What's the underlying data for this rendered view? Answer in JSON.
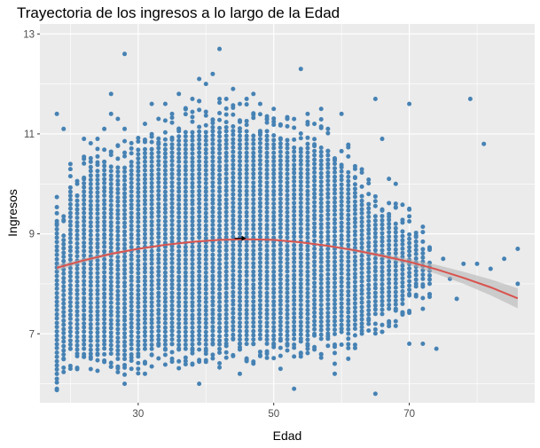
{
  "chart_data": {
    "type": "scatter",
    "title": "Trayectoria de los ingresos a lo largo de la Edad",
    "xlabel": "Edad",
    "ylabel": "Ingresos",
    "xlim": [
      15.5,
      88.5
    ],
    "ylim": [
      5.62,
      13.2
    ],
    "xticks": [
      30,
      50,
      70
    ],
    "yticks": [
      7,
      9,
      11,
      13
    ],
    "grid": true,
    "legend": "none",
    "colors": {
      "points": "#4682b4",
      "smooth": "#d9534f",
      "ribbon": "#b0b0b0",
      "panel": "#ebebeb",
      "grid": "#ffffff"
    },
    "smooth": {
      "x": [
        18,
        22,
        26,
        30,
        34,
        38,
        42,
        46,
        50,
        54,
        58,
        62,
        66,
        70,
        74,
        78,
        82,
        86
      ],
      "y": [
        8.32,
        8.47,
        8.6,
        8.7,
        8.78,
        8.84,
        8.88,
        8.89,
        8.88,
        8.83,
        8.76,
        8.67,
        8.56,
        8.44,
        8.29,
        8.12,
        7.93,
        7.71
      ],
      "se": [
        0.06,
        0.04,
        0.03,
        0.02,
        0.02,
        0.02,
        0.02,
        0.02,
        0.02,
        0.02,
        0.02,
        0.03,
        0.04,
        0.06,
        0.09,
        0.12,
        0.16,
        0.2
      ]
    },
    "marker": {
      "x": 45,
      "y": 8.91
    },
    "columns": [
      {
        "x": 18,
        "min": 6.2,
        "max": 9.3
      },
      {
        "x": 19,
        "min": 6.5,
        "max": 9.0
      },
      {
        "x": 20,
        "min": 6.7,
        "max": 10.0
      },
      {
        "x": 21,
        "min": 6.6,
        "max": 9.7
      },
      {
        "x": 22,
        "min": 6.7,
        "max": 10.1
      },
      {
        "x": 23,
        "min": 6.6,
        "max": 10.4
      },
      {
        "x": 24,
        "min": 6.6,
        "max": 10.3
      },
      {
        "x": 25,
        "min": 6.7,
        "max": 10.4
      },
      {
        "x": 26,
        "min": 6.6,
        "max": 10.4
      },
      {
        "x": 27,
        "min": 6.5,
        "max": 10.4
      },
      {
        "x": 28,
        "min": 6.5,
        "max": 10.4
      },
      {
        "x": 29,
        "min": 6.7,
        "max": 10.5
      },
      {
        "x": 30,
        "min": 6.6,
        "max": 10.6
      },
      {
        "x": 31,
        "min": 6.7,
        "max": 10.7
      },
      {
        "x": 32,
        "min": 6.7,
        "max": 10.7
      },
      {
        "x": 33,
        "min": 6.8,
        "max": 10.8
      },
      {
        "x": 34,
        "min": 6.7,
        "max": 10.8
      },
      {
        "x": 35,
        "min": 6.8,
        "max": 10.9
      },
      {
        "x": 36,
        "min": 6.7,
        "max": 11.0
      },
      {
        "x": 37,
        "min": 6.7,
        "max": 11.1
      },
      {
        "x": 38,
        "min": 6.7,
        "max": 11.1
      },
      {
        "x": 39,
        "min": 6.8,
        "max": 11.2
      },
      {
        "x": 40,
        "min": 6.7,
        "max": 11.1
      },
      {
        "x": 41,
        "min": 6.8,
        "max": 11.2
      },
      {
        "x": 42,
        "min": 6.7,
        "max": 11.2
      },
      {
        "x": 43,
        "min": 6.8,
        "max": 11.2
      },
      {
        "x": 44,
        "min": 6.9,
        "max": 11.2
      },
      {
        "x": 45,
        "min": 6.8,
        "max": 11.1
      },
      {
        "x": 46,
        "min": 6.8,
        "max": 11.1
      },
      {
        "x": 47,
        "min": 6.8,
        "max": 11.0
      },
      {
        "x": 48,
        "min": 6.9,
        "max": 11.0
      },
      {
        "x": 49,
        "min": 6.8,
        "max": 11.1
      },
      {
        "x": 50,
        "min": 6.8,
        "max": 11.0
      },
      {
        "x": 51,
        "min": 6.9,
        "max": 10.9
      },
      {
        "x": 52,
        "min": 6.8,
        "max": 10.9
      },
      {
        "x": 53,
        "min": 6.9,
        "max": 10.8
      },
      {
        "x": 54,
        "min": 6.9,
        "max": 10.7
      },
      {
        "x": 55,
        "min": 6.8,
        "max": 10.8
      },
      {
        "x": 56,
        "min": 7.0,
        "max": 10.7
      },
      {
        "x": 57,
        "min": 6.9,
        "max": 10.8
      },
      {
        "x": 58,
        "min": 7.0,
        "max": 10.6
      },
      {
        "x": 59,
        "min": 7.0,
        "max": 10.4
      },
      {
        "x": 60,
        "min": 7.1,
        "max": 10.3
      },
      {
        "x": 61,
        "min": 7.0,
        "max": 10.3
      },
      {
        "x": 62,
        "min": 7.1,
        "max": 10.0
      },
      {
        "x": 63,
        "min": 7.2,
        "max": 9.8
      },
      {
        "x": 64,
        "min": 7.3,
        "max": 9.6
      },
      {
        "x": 65,
        "min": 7.4,
        "max": 9.4
      },
      {
        "x": 66,
        "min": 7.4,
        "max": 9.4
      },
      {
        "x": 67,
        "min": 7.5,
        "max": 9.3
      },
      {
        "x": 68,
        "min": 7.5,
        "max": 9.2
      },
      {
        "x": 69,
        "min": 7.6,
        "max": 9.1
      },
      {
        "x": 70,
        "min": 7.8,
        "max": 9.0
      },
      {
        "x": 71,
        "min": 8.0,
        "max": 8.9
      },
      {
        "x": 72,
        "min": 8.1,
        "max": 8.7
      },
      {
        "x": 73,
        "min": 8.0,
        "max": 8.5
      }
    ],
    "outliers": [
      [
        18,
        11.4
      ],
      [
        18,
        9.2
      ],
      [
        18,
        6.1
      ],
      [
        19,
        11.1
      ],
      [
        21,
        10.0
      ],
      [
        22,
        10.9
      ],
      [
        22,
        10.5
      ],
      [
        24,
        10.9
      ],
      [
        24,
        10.7
      ],
      [
        25,
        11.1
      ],
      [
        26,
        11.8
      ],
      [
        26,
        11.4
      ],
      [
        27,
        11.3
      ],
      [
        28,
        12.6
      ],
      [
        28,
        11.1
      ],
      [
        28,
        6.0
      ],
      [
        29,
        6.3
      ],
      [
        30,
        6.3
      ],
      [
        31,
        11.2
      ],
      [
        31,
        6.2
      ],
      [
        32,
        11.6
      ],
      [
        33,
        11.3
      ],
      [
        34,
        11.6
      ],
      [
        35,
        11.4
      ],
      [
        35,
        6.5
      ],
      [
        36,
        11.8
      ],
      [
        37,
        11.5
      ],
      [
        38,
        11.7
      ],
      [
        38,
        6.4
      ],
      [
        39,
        12.1
      ],
      [
        39,
        6.0
      ],
      [
        40,
        12.0
      ],
      [
        40,
        6.6
      ],
      [
        41,
        12.2
      ],
      [
        42,
        12.7
      ],
      [
        42,
        11.7
      ],
      [
        43,
        11.7
      ],
      [
        44,
        11.9
      ],
      [
        45,
        11.6
      ],
      [
        45,
        6.2
      ],
      [
        46,
        11.7
      ],
      [
        47,
        11.8
      ],
      [
        48,
        11.6
      ],
      [
        49,
        11.3
      ],
      [
        50,
        11.5
      ],
      [
        51,
        6.3
      ],
      [
        52,
        11.3
      ],
      [
        53,
        5.9
      ],
      [
        54,
        12.3
      ],
      [
        54,
        6.6
      ],
      [
        55,
        11.4
      ],
      [
        56,
        11.2
      ],
      [
        57,
        11.5
      ],
      [
        58,
        11.1
      ],
      [
        59,
        6.2
      ],
      [
        59,
        6.4
      ],
      [
        60,
        11.4
      ],
      [
        61,
        6.5
      ],
      [
        62,
        10.3
      ],
      [
        65,
        11.7
      ],
      [
        65,
        5.8
      ],
      [
        66,
        10.9
      ],
      [
        67,
        10.1
      ],
      [
        68,
        10.0
      ],
      [
        68,
        7.5
      ],
      [
        69,
        7.4
      ],
      [
        70,
        11.6
      ],
      [
        70,
        6.8
      ],
      [
        70,
        9.5
      ],
      [
        72,
        6.8
      ],
      [
        72,
        7.5
      ],
      [
        74,
        6.7
      ],
      [
        75,
        8.5
      ],
      [
        76,
        8.1
      ],
      [
        77,
        7.7
      ],
      [
        78,
        8.4
      ],
      [
        79,
        11.7
      ],
      [
        80,
        8.4
      ],
      [
        81,
        10.8
      ],
      [
        82,
        8.3
      ],
      [
        84,
        8.5
      ],
      [
        86,
        8.7
      ],
      [
        86,
        8.0
      ]
    ]
  }
}
